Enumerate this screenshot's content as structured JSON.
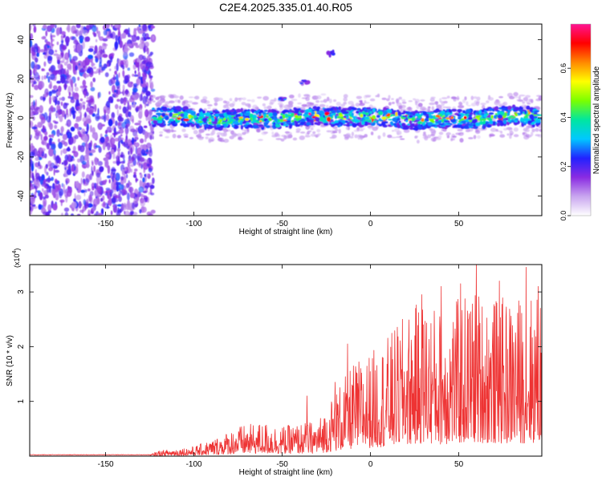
{
  "figure": {
    "title": "C2E4.2025.335.01.40.R05"
  },
  "colorbar": {
    "label": "Normalized spectral amplitude",
    "ticks": [
      "0.0",
      "0.2",
      "0.4",
      "0.6"
    ],
    "tick_values": [
      0.0,
      0.2,
      0.4,
      0.6
    ],
    "range": [
      0.0,
      0.78
    ],
    "colors": [
      "#ffffff",
      "#c9a6ef",
      "#8a2be2",
      "#2222ff",
      "#00c8ff",
      "#00e6a0",
      "#7bff00",
      "#ffff00",
      "#ff8800",
      "#ff0000",
      "#ff1493"
    ]
  },
  "chart_data": [
    {
      "type": "heatmap",
      "panel": "spectrogram",
      "xlabel": "Height of straight line (km)",
      "ylabel": "Frequency (Hz)",
      "xlim": [
        -193,
        97
      ],
      "ylim": [
        -50,
        48
      ],
      "xticks": [
        -150,
        -100,
        -50,
        0,
        50
      ],
      "xtick_labels": [
        "-150",
        "-100",
        "-50",
        "0",
        "50"
      ],
      "yticks": [
        -40,
        -20,
        0,
        20,
        40
      ],
      "ytick_labels": [
        "-40",
        "-20",
        "0",
        "20",
        "40"
      ],
      "noise_region_x": [
        -193,
        -123
      ],
      "signal_band": {
        "x_start": -123,
        "x_end": 97,
        "center_frequency_hz": 0,
        "half_width_hz": 5,
        "peak_amplitude": 0.78
      },
      "harmonic_streak": [
        {
          "x": -50,
          "y": 10
        },
        {
          "x": -37,
          "y": 18
        },
        {
          "x": -22,
          "y": 33
        }
      ]
    },
    {
      "type": "line",
      "panel": "snr",
      "xlabel": "Height of straight line (km)",
      "ylabel": "SNR (10 * v/v)",
      "y_multiplier": "(x10",
      "y_multiplier_exp": "4",
      "y_multiplier_close": ")",
      "xlim": [
        -193,
        97
      ],
      "ylim": [
        0,
        3.5
      ],
      "xticks": [
        -150,
        -100,
        -50,
        0,
        50
      ],
      "xtick_labels": [
        "-150",
        "-100",
        "-50",
        "0",
        "50"
      ],
      "yticks": [
        1,
        2,
        3
      ],
      "ytick_labels": [
        "1",
        "2",
        "3"
      ],
      "color": "#ee3333",
      "envelope": [
        {
          "x": -193,
          "y": 0.02
        },
        {
          "x": -125,
          "y": 0.03
        },
        {
          "x": -120,
          "y": 0.1
        },
        {
          "x": -100,
          "y": 0.18
        },
        {
          "x": -90,
          "y": 0.3
        },
        {
          "x": -75,
          "y": 0.55
        },
        {
          "x": -60,
          "y": 0.62
        },
        {
          "x": -50,
          "y": 0.55
        },
        {
          "x": -30,
          "y": 0.65
        },
        {
          "x": -25,
          "y": 0.9
        },
        {
          "x": -20,
          "y": 1.2
        },
        {
          "x": -10,
          "y": 1.7
        },
        {
          "x": 0,
          "y": 1.9
        },
        {
          "x": 10,
          "y": 2.2
        },
        {
          "x": 20,
          "y": 2.6
        },
        {
          "x": 30,
          "y": 2.9
        },
        {
          "x": 40,
          "y": 2.7
        },
        {
          "x": 50,
          "y": 2.9
        },
        {
          "x": 60,
          "y": 3.1
        },
        {
          "x": 70,
          "y": 2.9
        },
        {
          "x": 80,
          "y": 2.9
        },
        {
          "x": 90,
          "y": 3.0
        },
        {
          "x": 97,
          "y": 3.0
        }
      ],
      "peaks": [
        {
          "x": -36,
          "y": 1.1
        },
        {
          "x": -20,
          "y": 1.35
        },
        {
          "x": -13,
          "y": 2.05
        },
        {
          "x": 29,
          "y": 2.95
        },
        {
          "x": 40,
          "y": 3.1
        },
        {
          "x": 51,
          "y": 3.15
        },
        {
          "x": 60,
          "y": 3.5
        },
        {
          "x": 73,
          "y": 3.2
        },
        {
          "x": 88,
          "y": 3.45
        },
        {
          "x": 95,
          "y": 3.1
        }
      ]
    }
  ]
}
